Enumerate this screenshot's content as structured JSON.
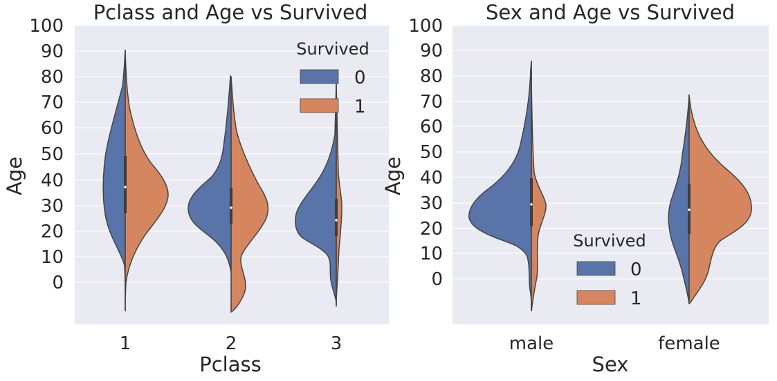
{
  "chart_data": [
    {
      "type": "violin",
      "title": "Pclass and Age vs Survived",
      "xlabel": "Pclass",
      "ylabel": "Age",
      "categories": [
        "1",
        "2",
        "3"
      ],
      "yticks": [
        "0",
        "10",
        "20",
        "30",
        "40",
        "50",
        "60",
        "70",
        "80",
        "90",
        "100"
      ],
      "ylim": [
        -17,
        100
      ],
      "grid": true,
      "split": true,
      "legend": {
        "title": "Survived",
        "position": "top-right",
        "entries": [
          "0",
          "1"
        ]
      },
      "series": [
        {
          "name": "0",
          "color": "#5874a8",
          "range": [
            [
              -11,
              90
            ],
            [
              -11,
              79
            ],
            [
              -9,
              76
            ]
          ],
          "median": [
            37,
            29,
            24
          ],
          "iqr": [
            [
              27,
              49
            ],
            [
              23,
              36
            ],
            [
              18,
              32
            ]
          ]
        },
        {
          "name": "1",
          "color": "#d6865f",
          "range": [
            [
              -11,
              90
            ],
            [
              -11,
              79
            ],
            [
              -9,
              76
            ]
          ],
          "median": [
            37,
            29,
            24
          ],
          "iqr": [
            [
              27,
              49
            ],
            [
              23,
              36
            ],
            [
              18,
              32
            ]
          ]
        }
      ]
    },
    {
      "type": "violin",
      "title": "Sex and Age vs Survived",
      "xlabel": "Sex",
      "ylabel": "Age",
      "categories": [
        "male",
        "female"
      ],
      "yticks": [
        "0",
        "10",
        "20",
        "30",
        "40",
        "50",
        "60",
        "70",
        "80",
        "90",
        "100"
      ],
      "ylim": [
        -17,
        100
      ],
      "grid": true,
      "split": true,
      "legend": {
        "title": "Survived",
        "position": "lower-center",
        "entries": [
          "0",
          "1"
        ]
      },
      "series": [
        {
          "name": "0",
          "color": "#5874a8",
          "range": [
            [
              -13,
              93
            ],
            [
              -10,
              73
            ]
          ],
          "median": [
            29,
            27
          ],
          "iqr": [
            [
              21,
              39
            ],
            [
              18,
              37
            ]
          ]
        },
        {
          "name": "1",
          "color": "#d6865f",
          "range": [
            [
              -13,
              93
            ],
            [
              -10,
              73
            ]
          ],
          "median": [
            29,
            27
          ],
          "iqr": [
            [
              21,
              39
            ],
            [
              18,
              37
            ]
          ]
        }
      ]
    }
  ]
}
